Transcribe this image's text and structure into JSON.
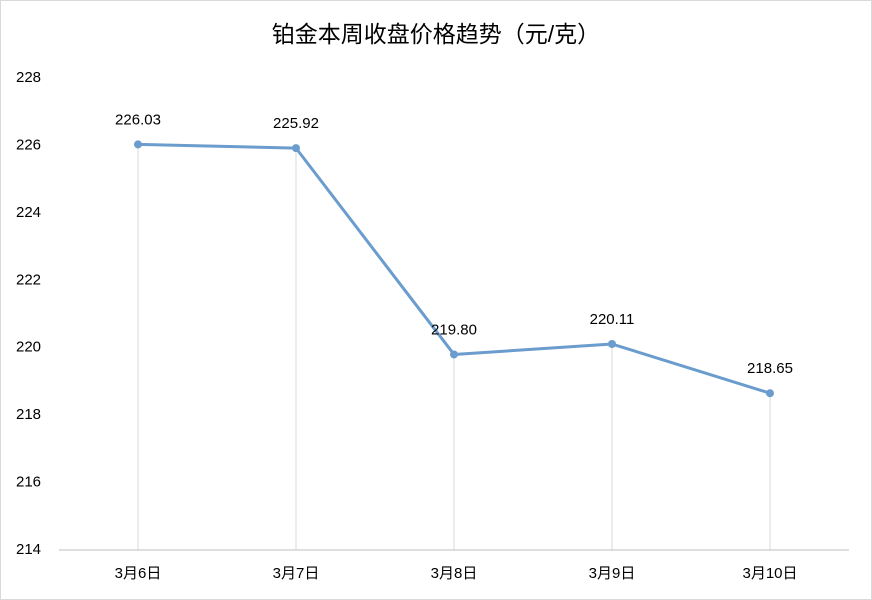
{
  "chart_data": {
    "type": "line",
    "title": "铂金本周收盘价格趋势（元/克）",
    "categories": [
      "3月6日",
      "3月7日",
      "3月8日",
      "3月9日",
      "3月10日"
    ],
    "values": [
      226.03,
      225.92,
      219.8,
      220.11,
      218.65
    ],
    "value_labels": [
      "226.03",
      "225.92",
      "219.80",
      "220.11",
      "218.65"
    ],
    "color": "#6a9ccd",
    "ylim": [
      214,
      228
    ],
    "yticks": [
      214,
      216,
      218,
      220,
      222,
      224,
      226,
      228
    ],
    "drop_lines": true
  }
}
